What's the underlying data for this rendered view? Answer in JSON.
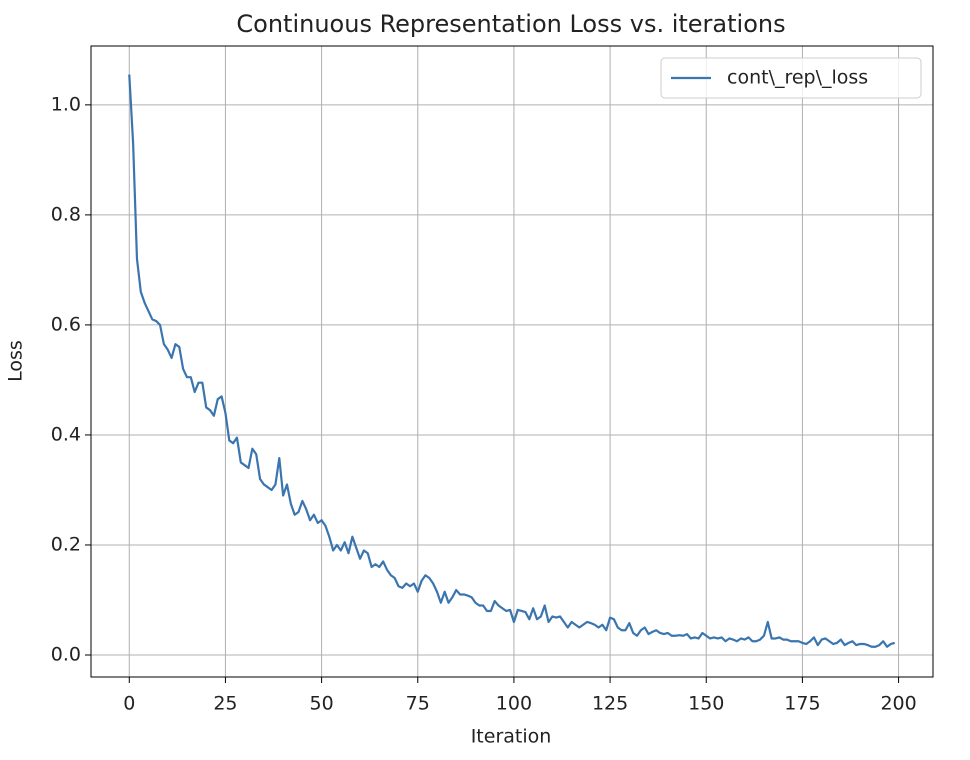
{
  "chart_data": {
    "type": "line",
    "title": "Continuous Representation Loss vs. iterations",
    "x_label": "Iteration",
    "y_label": "Loss",
    "x": [
      0,
      1,
      2,
      3,
      4,
      5,
      6,
      7,
      8,
      9,
      10,
      11,
      12,
      13,
      14,
      15,
      16,
      17,
      18,
      19,
      20,
      21,
      22,
      23,
      24,
      25,
      26,
      27,
      28,
      29,
      30,
      31,
      32,
      33,
      34,
      35,
      36,
      37,
      38,
      39,
      40,
      41,
      42,
      43,
      44,
      45,
      46,
      47,
      48,
      49,
      50,
      51,
      52,
      53,
      54,
      55,
      56,
      57,
      58,
      59,
      60,
      61,
      62,
      63,
      64,
      65,
      66,
      67,
      68,
      69,
      70,
      71,
      72,
      73,
      74,
      75,
      76,
      77,
      78,
      79,
      80,
      81,
      82,
      83,
      84,
      85,
      86,
      87,
      88,
      89,
      90,
      91,
      92,
      93,
      94,
      95,
      96,
      97,
      98,
      99,
      100,
      101,
      102,
      103,
      104,
      105,
      106,
      107,
      108,
      109,
      110,
      111,
      112,
      113,
      114,
      115,
      116,
      117,
      118,
      119,
      120,
      121,
      122,
      123,
      124,
      125,
      126,
      127,
      128,
      129,
      130,
      131,
      132,
      133,
      134,
      135,
      136,
      137,
      138,
      139,
      140,
      141,
      142,
      143,
      144,
      145,
      146,
      147,
      148,
      149,
      150,
      151,
      152,
      153,
      154,
      155,
      156,
      157,
      158,
      159,
      160,
      161,
      162,
      163,
      164,
      165,
      166,
      167,
      168,
      169,
      170,
      171,
      172,
      173,
      174,
      175,
      176,
      177,
      178,
      179,
      180,
      181,
      182,
      183,
      184,
      185,
      186,
      187,
      188,
      189,
      190,
      191,
      192,
      193,
      194,
      195,
      196,
      197,
      198,
      199
    ],
    "series": [
      {
        "name": "cont\\_rep\\_loss",
        "color": "#3a75b0",
        "values": [
          1.055,
          0.93,
          0.72,
          0.66,
          0.64,
          0.625,
          0.61,
          0.607,
          0.6,
          0.565,
          0.555,
          0.54,
          0.565,
          0.56,
          0.52,
          0.505,
          0.505,
          0.478,
          0.495,
          0.495,
          0.45,
          0.445,
          0.435,
          0.465,
          0.47,
          0.44,
          0.39,
          0.385,
          0.395,
          0.35,
          0.345,
          0.34,
          0.375,
          0.365,
          0.32,
          0.31,
          0.305,
          0.3,
          0.31,
          0.358,
          0.29,
          0.31,
          0.275,
          0.255,
          0.26,
          0.28,
          0.265,
          0.245,
          0.255,
          0.24,
          0.245,
          0.235,
          0.215,
          0.19,
          0.2,
          0.19,
          0.205,
          0.185,
          0.215,
          0.195,
          0.175,
          0.19,
          0.185,
          0.16,
          0.165,
          0.16,
          0.17,
          0.155,
          0.145,
          0.14,
          0.125,
          0.122,
          0.13,
          0.125,
          0.13,
          0.115,
          0.135,
          0.145,
          0.14,
          0.13,
          0.115,
          0.095,
          0.115,
          0.095,
          0.105,
          0.118,
          0.11,
          0.11,
          0.108,
          0.105,
          0.095,
          0.09,
          0.09,
          0.08,
          0.08,
          0.098,
          0.09,
          0.085,
          0.08,
          0.082,
          0.06,
          0.082,
          0.08,
          0.078,
          0.065,
          0.085,
          0.065,
          0.07,
          0.09,
          0.06,
          0.07,
          0.068,
          0.07,
          0.06,
          0.05,
          0.06,
          0.055,
          0.05,
          0.055,
          0.06,
          0.058,
          0.055,
          0.05,
          0.055,
          0.045,
          0.068,
          0.065,
          0.05,
          0.045,
          0.045,
          0.058,
          0.04,
          0.035,
          0.045,
          0.05,
          0.038,
          0.042,
          0.045,
          0.04,
          0.038,
          0.04,
          0.035,
          0.035,
          0.036,
          0.035,
          0.038,
          0.03,
          0.032,
          0.03,
          0.04,
          0.035,
          0.03,
          0.032,
          0.03,
          0.032,
          0.025,
          0.03,
          0.028,
          0.025,
          0.03,
          0.028,
          0.032,
          0.025,
          0.025,
          0.028,
          0.035,
          0.06,
          0.03,
          0.03,
          0.032,
          0.028,
          0.028,
          0.025,
          0.025,
          0.025,
          0.022,
          0.02,
          0.025,
          0.032,
          0.018,
          0.028,
          0.03,
          0.025,
          0.02,
          0.022,
          0.028,
          0.018,
          0.022,
          0.025,
          0.018,
          0.02,
          0.02,
          0.018,
          0.015,
          0.015,
          0.018,
          0.025,
          0.015,
          0.02,
          0.022
        ]
      }
    ],
    "xlim": [
      -9.95,
      208.95
    ],
    "ylim": [
      -0.04,
      1.107
    ],
    "xticks": [
      0,
      25,
      50,
      75,
      100,
      125,
      150,
      175,
      200
    ],
    "yticks": [
      {
        "value": 0,
        "label": "0.0"
      },
      {
        "value": 0.2,
        "label": "0.2"
      },
      {
        "value": 0.4,
        "label": "0.4"
      },
      {
        "value": 0.6,
        "label": "0.6"
      },
      {
        "value": 0.8,
        "label": "0.8"
      },
      {
        "value": 1,
        "label": "1.0"
      }
    ],
    "grid": true,
    "legend": "upper right"
  }
}
